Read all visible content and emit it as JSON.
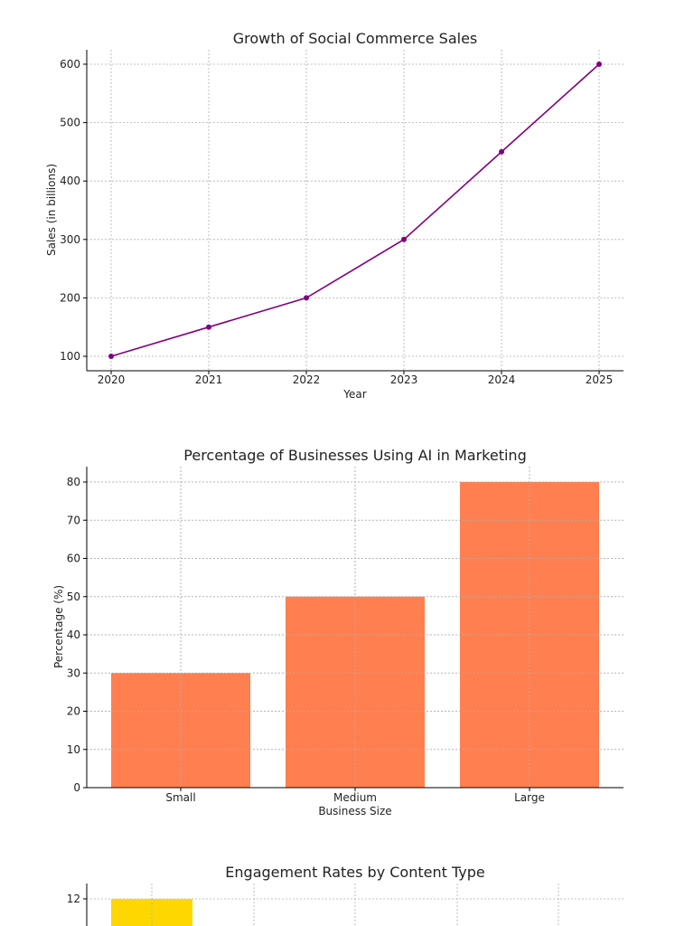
{
  "chart_data": [
    {
      "type": "line",
      "title": "Growth of Social Commerce Sales",
      "xlabel": "Year",
      "ylabel": "Sales (in billions)",
      "x": [
        2020,
        2021,
        2022,
        2023,
        2024,
        2025
      ],
      "series": [
        {
          "values": [
            100,
            150,
            200,
            300,
            450,
            600
          ],
          "color": "#800080"
        }
      ],
      "xlim": [
        2020,
        2025
      ],
      "ylim": [
        100,
        600
      ],
      "yticks": [
        100,
        200,
        300,
        400,
        500,
        600
      ],
      "grid": true
    },
    {
      "type": "bar",
      "title": "Percentage of Businesses Using AI in Marketing",
      "xlabel": "Business Size",
      "ylabel": "Percentage (%)",
      "categories": [
        "Small",
        "Medium",
        "Large"
      ],
      "values": [
        30,
        50,
        80
      ],
      "color": "#ff7f50",
      "ylim": [
        0,
        80
      ],
      "yticks": [
        0,
        10,
        20,
        30,
        40,
        50,
        60,
        70,
        80
      ],
      "grid": true
    },
    {
      "type": "bar",
      "title": "Engagement Rates by Content Type",
      "yticks": [
        12
      ],
      "first_bar_value": 12,
      "color": "#ffd700",
      "grid": true
    }
  ]
}
